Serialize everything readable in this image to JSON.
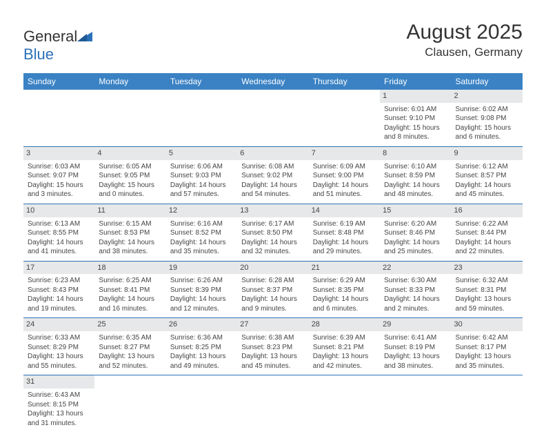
{
  "logo": {
    "word1": "General",
    "word2": "Blue"
  },
  "title": "August 2025",
  "location": "Clausen, Germany",
  "weekdays": [
    "Sunday",
    "Monday",
    "Tuesday",
    "Wednesday",
    "Thursday",
    "Friday",
    "Saturday"
  ],
  "colors": {
    "header_bg": "#3a82c4",
    "header_text": "#ffffff",
    "cell_border": "#2b71b8",
    "daynum_bg": "#e7e8e9",
    "text": "#444444",
    "logo_blue": "#2b71b8"
  },
  "weeks": [
    [
      {
        "empty": true
      },
      {
        "empty": true
      },
      {
        "empty": true
      },
      {
        "empty": true
      },
      {
        "empty": true
      },
      {
        "day": "1",
        "sunrise": "Sunrise: 6:01 AM",
        "sunset": "Sunset: 9:10 PM",
        "daylight1": "Daylight: 15 hours",
        "daylight2": "and 8 minutes."
      },
      {
        "day": "2",
        "sunrise": "Sunrise: 6:02 AM",
        "sunset": "Sunset: 9:08 PM",
        "daylight1": "Daylight: 15 hours",
        "daylight2": "and 6 minutes."
      }
    ],
    [
      {
        "day": "3",
        "sunrise": "Sunrise: 6:03 AM",
        "sunset": "Sunset: 9:07 PM",
        "daylight1": "Daylight: 15 hours",
        "daylight2": "and 3 minutes."
      },
      {
        "day": "4",
        "sunrise": "Sunrise: 6:05 AM",
        "sunset": "Sunset: 9:05 PM",
        "daylight1": "Daylight: 15 hours",
        "daylight2": "and 0 minutes."
      },
      {
        "day": "5",
        "sunrise": "Sunrise: 6:06 AM",
        "sunset": "Sunset: 9:03 PM",
        "daylight1": "Daylight: 14 hours",
        "daylight2": "and 57 minutes."
      },
      {
        "day": "6",
        "sunrise": "Sunrise: 6:08 AM",
        "sunset": "Sunset: 9:02 PM",
        "daylight1": "Daylight: 14 hours",
        "daylight2": "and 54 minutes."
      },
      {
        "day": "7",
        "sunrise": "Sunrise: 6:09 AM",
        "sunset": "Sunset: 9:00 PM",
        "daylight1": "Daylight: 14 hours",
        "daylight2": "and 51 minutes."
      },
      {
        "day": "8",
        "sunrise": "Sunrise: 6:10 AM",
        "sunset": "Sunset: 8:59 PM",
        "daylight1": "Daylight: 14 hours",
        "daylight2": "and 48 minutes."
      },
      {
        "day": "9",
        "sunrise": "Sunrise: 6:12 AM",
        "sunset": "Sunset: 8:57 PM",
        "daylight1": "Daylight: 14 hours",
        "daylight2": "and 45 minutes."
      }
    ],
    [
      {
        "day": "10",
        "sunrise": "Sunrise: 6:13 AM",
        "sunset": "Sunset: 8:55 PM",
        "daylight1": "Daylight: 14 hours",
        "daylight2": "and 41 minutes."
      },
      {
        "day": "11",
        "sunrise": "Sunrise: 6:15 AM",
        "sunset": "Sunset: 8:53 PM",
        "daylight1": "Daylight: 14 hours",
        "daylight2": "and 38 minutes."
      },
      {
        "day": "12",
        "sunrise": "Sunrise: 6:16 AM",
        "sunset": "Sunset: 8:52 PM",
        "daylight1": "Daylight: 14 hours",
        "daylight2": "and 35 minutes."
      },
      {
        "day": "13",
        "sunrise": "Sunrise: 6:17 AM",
        "sunset": "Sunset: 8:50 PM",
        "daylight1": "Daylight: 14 hours",
        "daylight2": "and 32 minutes."
      },
      {
        "day": "14",
        "sunrise": "Sunrise: 6:19 AM",
        "sunset": "Sunset: 8:48 PM",
        "daylight1": "Daylight: 14 hours",
        "daylight2": "and 29 minutes."
      },
      {
        "day": "15",
        "sunrise": "Sunrise: 6:20 AM",
        "sunset": "Sunset: 8:46 PM",
        "daylight1": "Daylight: 14 hours",
        "daylight2": "and 25 minutes."
      },
      {
        "day": "16",
        "sunrise": "Sunrise: 6:22 AM",
        "sunset": "Sunset: 8:44 PM",
        "daylight1": "Daylight: 14 hours",
        "daylight2": "and 22 minutes."
      }
    ],
    [
      {
        "day": "17",
        "sunrise": "Sunrise: 6:23 AM",
        "sunset": "Sunset: 8:43 PM",
        "daylight1": "Daylight: 14 hours",
        "daylight2": "and 19 minutes."
      },
      {
        "day": "18",
        "sunrise": "Sunrise: 6:25 AM",
        "sunset": "Sunset: 8:41 PM",
        "daylight1": "Daylight: 14 hours",
        "daylight2": "and 16 minutes."
      },
      {
        "day": "19",
        "sunrise": "Sunrise: 6:26 AM",
        "sunset": "Sunset: 8:39 PM",
        "daylight1": "Daylight: 14 hours",
        "daylight2": "and 12 minutes."
      },
      {
        "day": "20",
        "sunrise": "Sunrise: 6:28 AM",
        "sunset": "Sunset: 8:37 PM",
        "daylight1": "Daylight: 14 hours",
        "daylight2": "and 9 minutes."
      },
      {
        "day": "21",
        "sunrise": "Sunrise: 6:29 AM",
        "sunset": "Sunset: 8:35 PM",
        "daylight1": "Daylight: 14 hours",
        "daylight2": "and 6 minutes."
      },
      {
        "day": "22",
        "sunrise": "Sunrise: 6:30 AM",
        "sunset": "Sunset: 8:33 PM",
        "daylight1": "Daylight: 14 hours",
        "daylight2": "and 2 minutes."
      },
      {
        "day": "23",
        "sunrise": "Sunrise: 6:32 AM",
        "sunset": "Sunset: 8:31 PM",
        "daylight1": "Daylight: 13 hours",
        "daylight2": "and 59 minutes."
      }
    ],
    [
      {
        "day": "24",
        "sunrise": "Sunrise: 6:33 AM",
        "sunset": "Sunset: 8:29 PM",
        "daylight1": "Daylight: 13 hours",
        "daylight2": "and 55 minutes."
      },
      {
        "day": "25",
        "sunrise": "Sunrise: 6:35 AM",
        "sunset": "Sunset: 8:27 PM",
        "daylight1": "Daylight: 13 hours",
        "daylight2": "and 52 minutes."
      },
      {
        "day": "26",
        "sunrise": "Sunrise: 6:36 AM",
        "sunset": "Sunset: 8:25 PM",
        "daylight1": "Daylight: 13 hours",
        "daylight2": "and 49 minutes."
      },
      {
        "day": "27",
        "sunrise": "Sunrise: 6:38 AM",
        "sunset": "Sunset: 8:23 PM",
        "daylight1": "Daylight: 13 hours",
        "daylight2": "and 45 minutes."
      },
      {
        "day": "28",
        "sunrise": "Sunrise: 6:39 AM",
        "sunset": "Sunset: 8:21 PM",
        "daylight1": "Daylight: 13 hours",
        "daylight2": "and 42 minutes."
      },
      {
        "day": "29",
        "sunrise": "Sunrise: 6:41 AM",
        "sunset": "Sunset: 8:19 PM",
        "daylight1": "Daylight: 13 hours",
        "daylight2": "and 38 minutes."
      },
      {
        "day": "30",
        "sunrise": "Sunrise: 6:42 AM",
        "sunset": "Sunset: 8:17 PM",
        "daylight1": "Daylight: 13 hours",
        "daylight2": "and 35 minutes."
      }
    ],
    [
      {
        "day": "31",
        "sunrise": "Sunrise: 6:43 AM",
        "sunset": "Sunset: 8:15 PM",
        "daylight1": "Daylight: 13 hours",
        "daylight2": "and 31 minutes."
      },
      {
        "empty": true
      },
      {
        "empty": true
      },
      {
        "empty": true
      },
      {
        "empty": true
      },
      {
        "empty": true
      },
      {
        "empty": true
      }
    ]
  ]
}
